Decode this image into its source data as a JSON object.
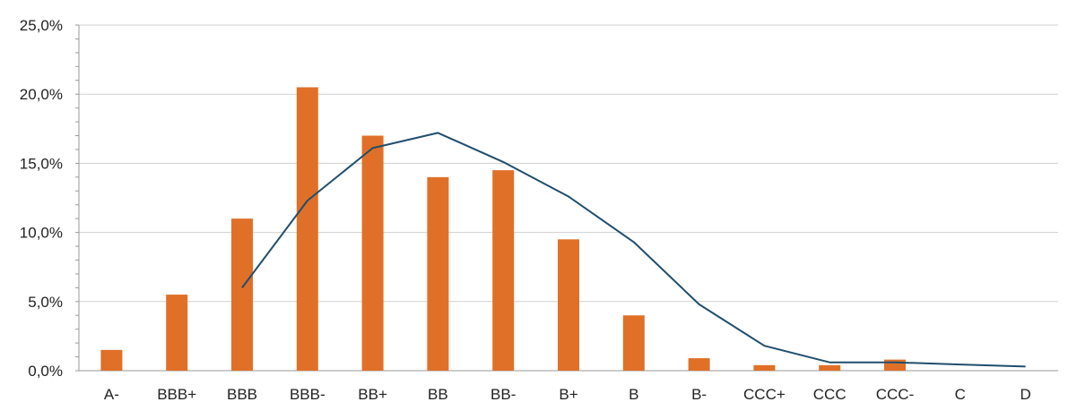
{
  "chart_data": {
    "type": "bar",
    "categories": [
      "A-",
      "BBB+",
      "BBB",
      "BBB-",
      "BB+",
      "BB",
      "BB-",
      "B+",
      "B",
      "B-",
      "CCC+",
      "CCC",
      "CCC-",
      "C",
      "D"
    ],
    "series": [
      {
        "type": "bar",
        "color": "#E07028",
        "values": [
          1.5,
          5.5,
          11.0,
          20.5,
          17.0,
          14.0,
          14.5,
          9.5,
          4.0,
          0.9,
          0.4,
          0.4,
          0.8,
          0.0,
          0.0
        ]
      },
      {
        "type": "line",
        "color": "#1F4E6E",
        "values": [
          null,
          null,
          6.0,
          12.3,
          16.1,
          17.2,
          15.1,
          12.6,
          9.3,
          4.8,
          1.8,
          0.6,
          0.6,
          0.45,
          0.3
        ]
      }
    ],
    "ylim": [
      0,
      25
    ],
    "y_ticks": [
      "0,0%",
      "5,0%",
      "10,0%",
      "15,0%",
      "20,0%",
      "25,0%"
    ],
    "y_tick_values": [
      0,
      5,
      10,
      15,
      20,
      25
    ],
    "grid": true,
    "title": "",
    "xlabel": "",
    "ylabel": ""
  }
}
